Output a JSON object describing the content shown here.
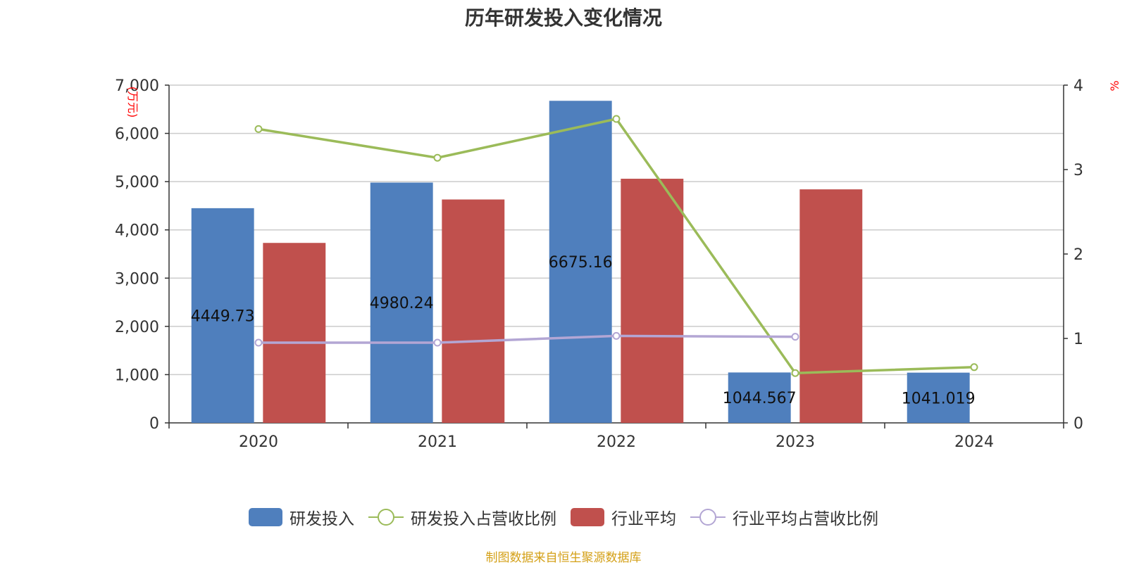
{
  "title": "历年研发投入变化情况",
  "source_note": "制图数据来自恒生聚源数据库",
  "colors": {
    "rd": "#4f7fbd",
    "rd_ratio": "#9bbb59",
    "industry": "#c0504d",
    "industry_ratio": "#b3a6d4",
    "unit": "#ff0000",
    "source": "#d4a017"
  },
  "legend": [
    {
      "label": "研发投入",
      "kind": "bar",
      "color": "#4f7fbd"
    },
    {
      "label": "研发投入占营收比例",
      "kind": "line",
      "color": "#9bbb59"
    },
    {
      "label": "行业平均",
      "kind": "bar",
      "color": "#c0504d"
    },
    {
      "label": "行业平均占营收比例",
      "kind": "line",
      "color": "#b3a6d4"
    }
  ],
  "chart_data": {
    "type": "bar",
    "categories": [
      "2020",
      "2021",
      "2022",
      "2023",
      "2024"
    ],
    "y_left": {
      "label": "(万元)",
      "range": [
        0,
        7000
      ],
      "ticks": [
        "0",
        "1,000",
        "2,000",
        "3,000",
        "4,000",
        "5,000",
        "6,000",
        "7,000"
      ]
    },
    "y_right": {
      "label": "%",
      "range": [
        0,
        4
      ],
      "ticks": [
        "0",
        "1",
        "2",
        "3",
        "4"
      ]
    },
    "grid": true,
    "legend_position": "bottom",
    "series": [
      {
        "name": "研发投入",
        "type": "bar",
        "axis": "left",
        "values": [
          4449.73,
          4980.24,
          6675.16,
          1044.567,
          1041.019
        ],
        "labels": [
          "4449.73",
          "4980.24",
          "6675.16",
          "1044.567",
          "1041.019"
        ]
      },
      {
        "name": "行业平均",
        "type": "bar",
        "axis": "left",
        "values": [
          3730,
          4630,
          5060,
          4840,
          null
        ]
      },
      {
        "name": "研发投入占营收比例",
        "type": "line",
        "axis": "right",
        "values": [
          3.48,
          3.14,
          3.6,
          0.59,
          0.66
        ]
      },
      {
        "name": "行业平均占营收比例",
        "type": "line",
        "axis": "right",
        "values": [
          0.95,
          0.95,
          1.03,
          1.02,
          null
        ]
      }
    ]
  }
}
